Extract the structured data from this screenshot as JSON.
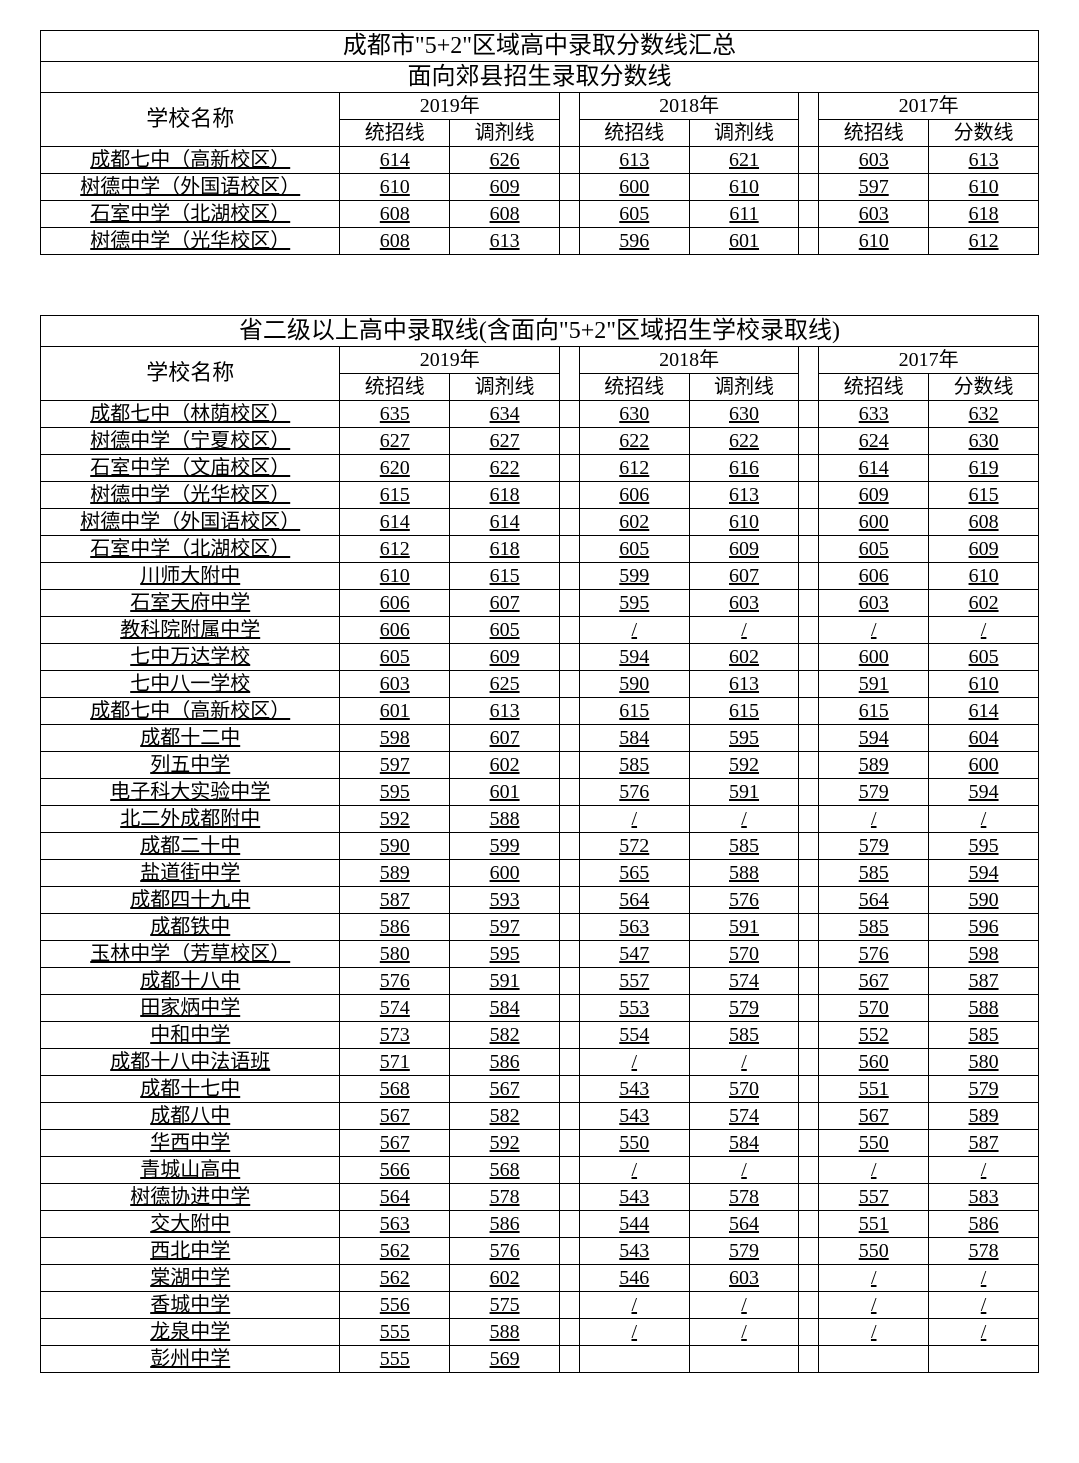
{
  "colors": {
    "background": "#ffffff",
    "border": "#000000",
    "text": "#000000"
  },
  "typography": {
    "font_family": "SimSun",
    "title_fontsize": 24,
    "header_fontsize": 22,
    "cell_fontsize": 20,
    "underline_rows": true
  },
  "table1": {
    "type": "table",
    "title": "成都市\"5+2\"区域高中录取分数线汇总",
    "subtitle": "面向郊县招生录取分数线",
    "school_header": "学校名称",
    "year_groups": [
      {
        "year": "2019年",
        "cols": [
          "统招线",
          "调剂线"
        ]
      },
      {
        "year": "2018年",
        "cols": [
          "统招线",
          "调剂线"
        ]
      },
      {
        "year": "2017年",
        "cols": [
          "统招线",
          "分数线"
        ]
      }
    ],
    "rows": [
      {
        "school": "成都七中（高新校区）",
        "v": [
          "614",
          "626",
          "613",
          "621",
          "603",
          "613"
        ]
      },
      {
        "school": "树德中学（外国语校区）",
        "v": [
          "610",
          "609",
          "600",
          "610",
          "597",
          "610"
        ]
      },
      {
        "school": "石室中学（北湖校区）",
        "v": [
          "608",
          "608",
          "605",
          "611",
          "603",
          "618"
        ]
      },
      {
        "school": "树德中学（光华校区）",
        "v": [
          "608",
          "613",
          "596",
          "601",
          "610",
          "612"
        ]
      }
    ]
  },
  "table2": {
    "type": "table",
    "title": "省二级以上高中录取线(含面向\"5+2\"区域招生学校录取线)",
    "school_header": "学校名称",
    "year_groups": [
      {
        "year": "2019年",
        "cols": [
          "统招线",
          "调剂线"
        ]
      },
      {
        "year": "2018年",
        "cols": [
          "统招线",
          "调剂线"
        ]
      },
      {
        "year": "2017年",
        "cols": [
          "统招线",
          "分数线"
        ]
      }
    ],
    "rows": [
      {
        "school": "成都七中（林荫校区）",
        "v": [
          "635",
          "634",
          "630",
          "630",
          "633",
          "632"
        ]
      },
      {
        "school": "树德中学（宁夏校区）",
        "v": [
          "627",
          "627",
          "622",
          "622",
          "624",
          "630"
        ]
      },
      {
        "school": "石室中学（文庙校区）",
        "v": [
          "620",
          "622",
          "612",
          "616",
          "614",
          "619"
        ]
      },
      {
        "school": "树德中学（光华校区）",
        "v": [
          "615",
          "618",
          "606",
          "613",
          "609",
          "615"
        ]
      },
      {
        "school": "树德中学（外国语校区）",
        "v": [
          "614",
          "614",
          "602",
          "610",
          "600",
          "608"
        ]
      },
      {
        "school": "石室中学（北湖校区）",
        "v": [
          "612",
          "618",
          "605",
          "609",
          "605",
          "609"
        ]
      },
      {
        "school": "川师大附中",
        "v": [
          "610",
          "615",
          "599",
          "607",
          "606",
          "610"
        ]
      },
      {
        "school": "石室天府中学",
        "v": [
          "606",
          "607",
          "595",
          "603",
          "603",
          "602"
        ]
      },
      {
        "school": "教科院附属中学",
        "v": [
          "606",
          "605",
          "/",
          "/",
          "/",
          "/"
        ]
      },
      {
        "school": "七中万达学校",
        "v": [
          "605",
          "609",
          "594",
          "602",
          "600",
          "605"
        ]
      },
      {
        "school": "七中八一学校",
        "v": [
          "603",
          "625",
          "590",
          "613",
          "591",
          "610"
        ]
      },
      {
        "school": "成都七中（高新校区）",
        "v": [
          "601",
          "613",
          "615",
          "615",
          "615",
          "614"
        ]
      },
      {
        "school": "成都十二中",
        "v": [
          "598",
          "607",
          "584",
          "595",
          "594",
          "604"
        ]
      },
      {
        "school": "列五中学",
        "v": [
          "597",
          "602",
          "585",
          "592",
          "589",
          "600"
        ]
      },
      {
        "school": "电子科大实验中学",
        "v": [
          "595",
          "601",
          "576",
          "591",
          "579",
          "594"
        ]
      },
      {
        "school": "北二外成都附中",
        "v": [
          "592",
          "588",
          "/",
          "/",
          "/",
          "/"
        ]
      },
      {
        "school": "成都二十中",
        "v": [
          "590",
          "599",
          "572",
          "585",
          "579",
          "595"
        ]
      },
      {
        "school": "盐道街中学",
        "v": [
          "589",
          "600",
          "565",
          "588",
          "585",
          "594"
        ]
      },
      {
        "school": "成都四十九中",
        "v": [
          "587",
          "593",
          "564",
          "576",
          "564",
          "590"
        ]
      },
      {
        "school": "成都铁中",
        "v": [
          "586",
          "597",
          "563",
          "591",
          "585",
          "596"
        ]
      },
      {
        "school": "玉林中学（芳草校区）",
        "v": [
          "580",
          "595",
          "547",
          "570",
          "576",
          "598"
        ]
      },
      {
        "school": "成都十八中",
        "v": [
          "576",
          "591",
          "557",
          "574",
          "567",
          "587"
        ]
      },
      {
        "school": "田家炳中学",
        "v": [
          "574",
          "584",
          "553",
          "579",
          "570",
          "588"
        ]
      },
      {
        "school": "中和中学",
        "v": [
          "573",
          "582",
          "554",
          "585",
          "552",
          "585"
        ]
      },
      {
        "school": "成都十八中法语班",
        "v": [
          "571",
          "586",
          "/",
          "/",
          "560",
          "580"
        ]
      },
      {
        "school": "成都十七中",
        "v": [
          "568",
          "567",
          "543",
          "570",
          "551",
          "579"
        ]
      },
      {
        "school": "成都八中",
        "v": [
          "567",
          "582",
          "543",
          "574",
          "567",
          "589"
        ]
      },
      {
        "school": "华西中学",
        "v": [
          "567",
          "592",
          "550",
          "584",
          "550",
          "587"
        ]
      },
      {
        "school": "青城山高中",
        "v": [
          "566",
          "568",
          "/",
          "/",
          "/",
          "/"
        ]
      },
      {
        "school": "树德协进中学",
        "v": [
          "564",
          "578",
          "543",
          "578",
          "557",
          "583"
        ]
      },
      {
        "school": "交大附中",
        "v": [
          "563",
          "586",
          "544",
          "564",
          "551",
          "586"
        ]
      },
      {
        "school": "西北中学",
        "v": [
          "562",
          "576",
          "543",
          "579",
          "550",
          "578"
        ]
      },
      {
        "school": "棠湖中学",
        "v": [
          "562",
          "602",
          "546",
          "603",
          "/",
          "/"
        ]
      },
      {
        "school": "香城中学",
        "v": [
          "556",
          "575",
          "/",
          "/",
          "/",
          "/"
        ]
      },
      {
        "school": "龙泉中学",
        "v": [
          "555",
          "588",
          "/",
          "/",
          "/",
          "/"
        ]
      },
      {
        "school": "彭州中学",
        "v": [
          "555",
          "569",
          "",
          "",
          "",
          ""
        ]
      }
    ]
  }
}
